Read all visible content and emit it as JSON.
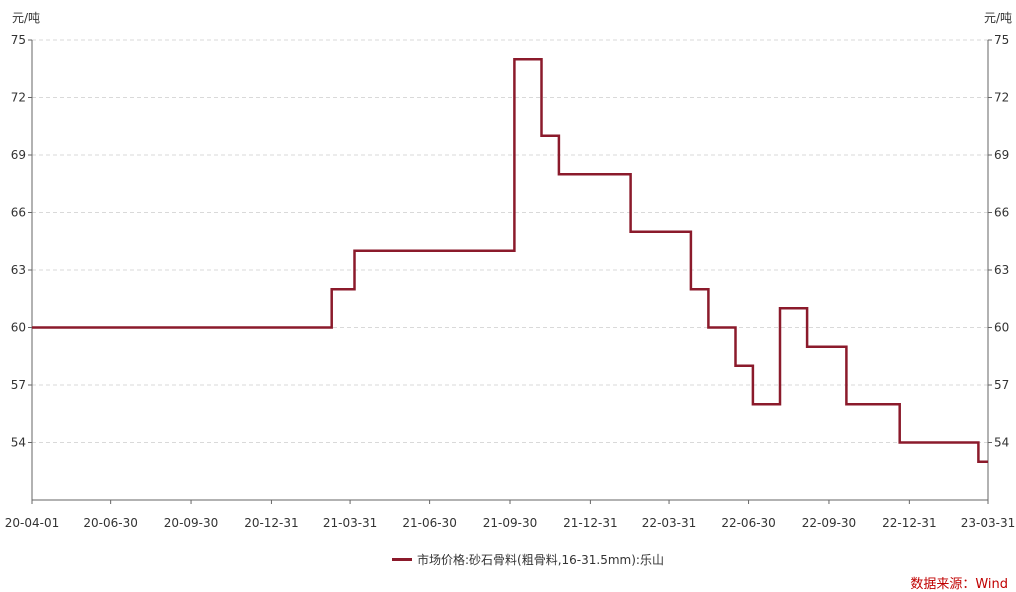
{
  "chart_data": {
    "type": "line",
    "step": "post",
    "unit_left": "元/吨",
    "unit_right": "元/吨",
    "ylim": [
      51,
      75
    ],
    "yticks": [
      54,
      57,
      60,
      63,
      66,
      69,
      72,
      75
    ],
    "xticks": [
      "20-04-01",
      "20-06-30",
      "20-09-30",
      "20-12-31",
      "21-03-31",
      "21-06-30",
      "21-09-30",
      "21-12-31",
      "22-03-31",
      "22-06-30",
      "22-09-30",
      "22-12-31",
      "23-03-31"
    ],
    "grid": true,
    "legend_position": "bottom",
    "series": [
      {
        "name": "市场价格:砂石骨料(粗骨料,16-31.5mm):乐山",
        "color": "#8b1a2b",
        "x": [
          "2020-04-01",
          "2021-03-10",
          "2021-04-05",
          "2021-10-05",
          "2021-11-05",
          "2021-11-25",
          "2022-02-15",
          "2022-04-25",
          "2022-05-15",
          "2022-06-15",
          "2022-07-05",
          "2022-08-05",
          "2022-09-05",
          "2022-10-20",
          "2022-12-20",
          "2023-03-20",
          "2023-03-31"
        ],
        "y": [
          60,
          62,
          64,
          74,
          70,
          68,
          65,
          62,
          60,
          58,
          56,
          61,
          59,
          56,
          54,
          53,
          53
        ]
      }
    ]
  },
  "source_text": "数据来源：Wind"
}
